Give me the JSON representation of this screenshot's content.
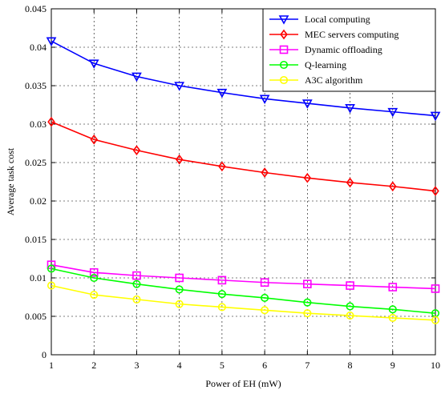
{
  "chart_data": {
    "type": "line",
    "xlabel": "Power of EH (mW)",
    "ylabel": "Average task cost",
    "xlim": [
      1,
      10
    ],
    "ylim": [
      0,
      0.045
    ],
    "x": [
      1,
      2,
      3,
      4,
      5,
      6,
      7,
      8,
      9,
      10
    ],
    "x_ticks": [
      "1",
      "2",
      "3",
      "4",
      "5",
      "6",
      "7",
      "8",
      "9",
      "10"
    ],
    "y_ticks": [
      {
        "value": 0,
        "label": "0"
      },
      {
        "value": 0.005,
        "label": "0.005"
      },
      {
        "value": 0.01,
        "label": "0.01"
      },
      {
        "value": 0.015,
        "label": "0.015"
      },
      {
        "value": 0.02,
        "label": "0.02"
      },
      {
        "value": 0.025,
        "label": "0.025"
      },
      {
        "value": 0.03,
        "label": "0.03"
      },
      {
        "value": 0.035,
        "label": "0.035"
      },
      {
        "value": 0.04,
        "label": "0.04"
      },
      {
        "value": 0.045,
        "label": "0.045"
      }
    ],
    "grid": true,
    "legend_position": "top-right",
    "series": [
      {
        "name": "Local computing",
        "color": "#0000ff",
        "marker": "triangle-down",
        "values": [
          0.0408,
          0.0379,
          0.0362,
          0.035,
          0.0341,
          0.0333,
          0.0327,
          0.0321,
          0.0316,
          0.0311
        ]
      },
      {
        "name": "MEC servers computing",
        "color": "#ff0000",
        "marker": "diamond",
        "values": [
          0.0303,
          0.028,
          0.0266,
          0.0254,
          0.0245,
          0.0237,
          0.023,
          0.0224,
          0.0219,
          0.0213
        ]
      },
      {
        "name": "Dynamic offloading",
        "color": "#ff00ff",
        "marker": "square",
        "values": [
          0.0117,
          0.0107,
          0.0103,
          0.01,
          0.0097,
          0.0094,
          0.0092,
          0.009,
          0.0088,
          0.0086
        ]
      },
      {
        "name": "Q-learning",
        "color": "#00ff00",
        "marker": "circle",
        "values": [
          0.0112,
          0.01,
          0.0092,
          0.0085,
          0.0079,
          0.0074,
          0.0068,
          0.0063,
          0.0059,
          0.0054
        ]
      },
      {
        "name": "A3C algorithm",
        "color": "#ffff00",
        "marker": "circle",
        "values": [
          0.009,
          0.0078,
          0.0072,
          0.0066,
          0.0062,
          0.0058,
          0.0054,
          0.0051,
          0.0048,
          0.0045
        ]
      }
    ]
  }
}
